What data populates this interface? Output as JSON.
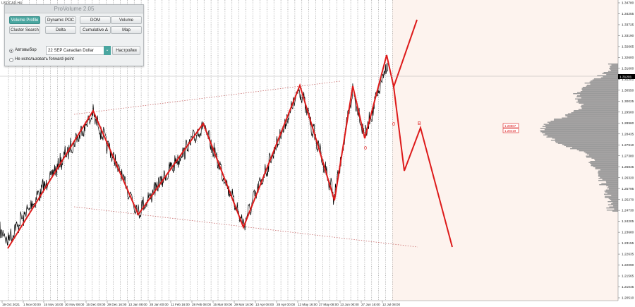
{
  "chart_data": {
    "type": "line",
    "symbol": "USDCAD,H4",
    "y_ticks": [
      "1.34780",
      "1.34255",
      "1.33725",
      "1.33190",
      "1.32665",
      "1.32600",
      "1.31600",
      "1.31201",
      "1.30550",
      "1.30025",
      "1.29500",
      "1.28960",
      "1.28435",
      "1.27910",
      "1.27380",
      "1.26845",
      "1.26320",
      "1.25795",
      "1.25270",
      "1.24730",
      "1.24205",
      "1.23680",
      "1.23155",
      "1.22635",
      "1.22090",
      "1.21565",
      "1.21045",
      "1.20510"
    ],
    "current_price": "1.31201",
    "x_ticks": [
      "19 Oct 2021",
      "1 Nov 00:00",
      "15 Nov 16:00",
      "30 Nov 08:00",
      "15 Dec 00:00",
      "29 Dec 16:00",
      "13 Jan 08:00",
      "28 Jan 00:00",
      "11 Feb 16:00",
      "28 Feb 08:00",
      "15 Mar 00:00",
      "29 Mar 16:00",
      "13 Apr 08:00",
      "28 Apr 00:00",
      "12 May 16:00",
      "27 May 08:00",
      "13 Jun 00:00",
      "27 Jun 16:00",
      "12 Jul 08:00"
    ],
    "profile_labels": [
      "1.28867",
      "1.28419"
    ],
    "wave_labels": [
      "0",
      "0",
      "B"
    ],
    "colors": {
      "zigzag": "#dd1a1a",
      "dotted": "#c86a6a",
      "price": "#000000",
      "profile": "#9a9a9a",
      "future_bg": "#fdf3ee"
    }
  },
  "panel": {
    "title": "ProVolume 2.05",
    "buttons": [
      {
        "label": "Volume Profile",
        "active": true
      },
      {
        "label": "Dynamic POC",
        "active": false
      },
      {
        "label": "DOM",
        "active": false
      },
      {
        "label": "Volume",
        "active": false
      },
      {
        "label": "Cluster Search",
        "active": false
      },
      {
        "label": "Delta",
        "active": false
      },
      {
        "label": "Cumulative Δ",
        "active": false
      },
      {
        "label": "Map",
        "active": false
      }
    ],
    "auto_label": "Автовыбор",
    "contract": "22 SEP Canadian Dollar",
    "settings_label": "Настройки",
    "forward_label": "Не использовать forward-point"
  }
}
